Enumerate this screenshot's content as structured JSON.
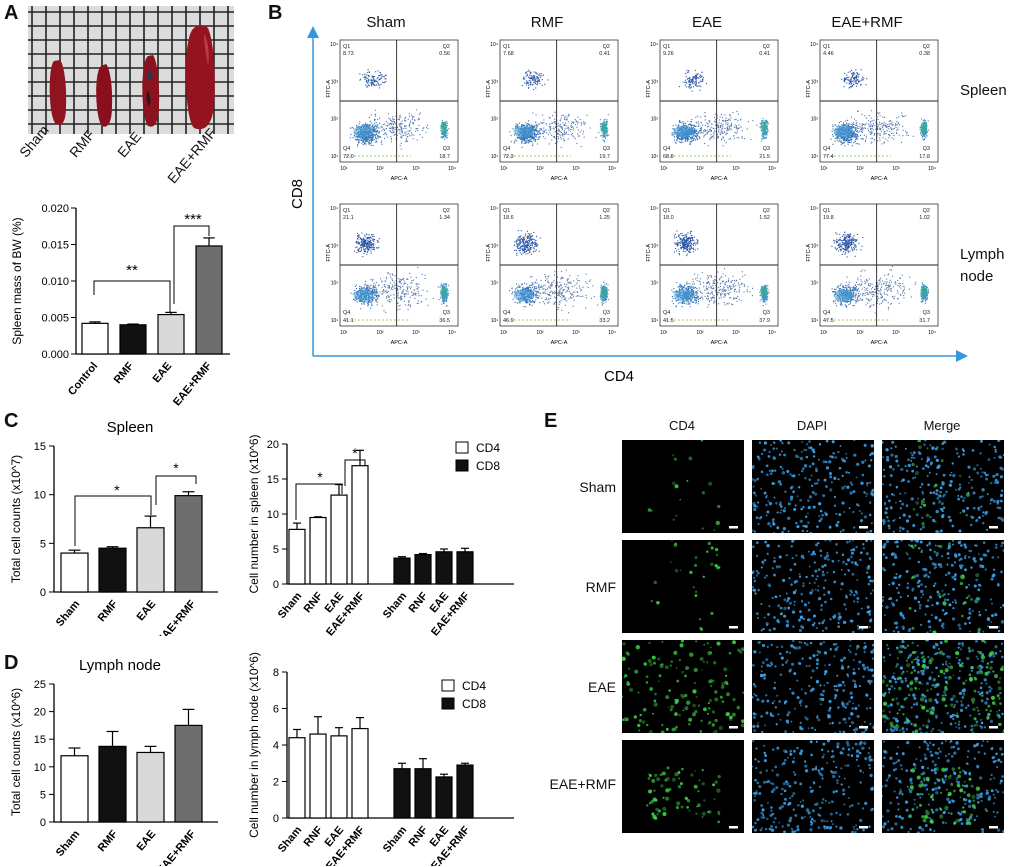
{
  "panels": {
    "A": "A",
    "B": "B",
    "C": "C",
    "D": "D",
    "E": "E"
  },
  "colors": {
    "white_bar": "#ffffff",
    "black_bar": "#111111",
    "light_grey": "#d9d9d9",
    "dark_grey": "#6e6e6e",
    "flow_blue": "#2a56a6",
    "flow_green": "#35b38a",
    "axis_blue": "#3399dd",
    "fluor_green": "#3fd44a",
    "dapi_blue": "#3aa0e8"
  },
  "photo": {
    "labels": [
      "Sham",
      "RMF",
      "EAE",
      "EAE+RMF"
    ]
  },
  "chartA": {
    "ylabel": "Spleen mass of BW (%)",
    "ticks": [
      "0.000",
      "0.005",
      "0.010",
      "0.015",
      "0.020"
    ],
    "categories": [
      "Control",
      "RMF",
      "EAE",
      "EAE+RMF"
    ],
    "sig1": "**",
    "sig2": "***"
  },
  "flow": {
    "columns": [
      "Sham",
      "RMF",
      "EAE",
      "EAE+RMF"
    ],
    "rows": [
      "Spleen",
      "Lymph node"
    ],
    "row_label_lymph_1": "Lymph",
    "row_label_lymph_2": "node",
    "y_axis": "CD8",
    "x_axis": "CD4",
    "xlabel": "APC-A",
    "ylabel": "FITC-A",
    "quadrant_values": [
      [
        [
          "8.73",
          "0.56",
          "72.0",
          "18.7"
        ],
        [
          "7.68",
          "0.41",
          "72.3",
          "19.7"
        ],
        [
          "9.26",
          "0.41",
          "68.8",
          "21.5"
        ],
        [
          "4.46",
          "0.38",
          "77.4",
          "17.8"
        ]
      ],
      [
        [
          "21.1",
          "1.34",
          "41.1",
          "36.5"
        ],
        [
          "18.6",
          "1.25",
          "46.9",
          "33.2"
        ],
        [
          "18.0",
          "1.52",
          "41.5",
          "37.9"
        ],
        [
          "19.8",
          "1.02",
          "47.5",
          "31.7"
        ]
      ]
    ]
  },
  "chartC1": {
    "title": "Spleen",
    "ylabel": "Total cell counts (x10^7)",
    "ticks": [
      "0",
      "5",
      "10",
      "15"
    ],
    "categories": [
      "Sham",
      "RMF",
      "EAE",
      "EAE+RMF"
    ],
    "sig": "*"
  },
  "chartC2": {
    "ylabel": "Cell number in spleen (x10^6)",
    "ticks": [
      "0",
      "5",
      "10",
      "15",
      "20"
    ],
    "categories": [
      "Sham",
      "RNF",
      "EAE",
      "EAE+RMF",
      "Sham",
      "RNF",
      "EAE",
      "EAE+RMF"
    ],
    "legend": [
      "CD4",
      "CD8"
    ],
    "sig": "*"
  },
  "chartD1": {
    "title": "Lymph node",
    "ylabel": "Total cell counts (x10^6)",
    "ticks": [
      "0",
      "5",
      "10",
      "15",
      "20",
      "25"
    ],
    "categories": [
      "Sham",
      "RMF",
      "EAE",
      "EAE+RMF"
    ]
  },
  "chartD2": {
    "ylabel": "Cell number in lymph node (x10^6)",
    "ticks": [
      "0",
      "2",
      "4",
      "6",
      "8"
    ],
    "categories": [
      "Sham",
      "RNF",
      "EAE",
      "EAE+RMF",
      "Sham",
      "RNF",
      "EAE",
      "EAE+RMF"
    ],
    "legend": [
      "CD4",
      "CD8"
    ]
  },
  "micro": {
    "columns": [
      "CD4",
      "DAPI",
      "Merge"
    ],
    "rows": [
      "Sham",
      "RMF",
      "EAE",
      "EAE+RMF"
    ]
  },
  "chart_data": [
    {
      "type": "bar",
      "categories": [
        "Control",
        "RMF",
        "EAE",
        "EAE+RMF"
      ],
      "values": [
        0.0042,
        0.004,
        0.0054,
        0.0148
      ],
      "errors": [
        0.0002,
        0.0001,
        0.0003,
        0.0011
      ],
      "ylabel": "Spleen mass of BW (%)",
      "ylim": [
        0,
        0.02
      ],
      "colors": [
        "#ffffff",
        "#111111",
        "#d9d9d9",
        "#6e6e6e"
      ]
    },
    {
      "type": "bar",
      "title": "Spleen",
      "categories": [
        "Sham",
        "RMF",
        "EAE",
        "EAE+RMF"
      ],
      "values": [
        4.0,
        4.5,
        6.6,
        9.9
      ],
      "errors": [
        0.3,
        0.15,
        1.2,
        0.4
      ],
      "ylabel": "Total cell counts (x10^7)",
      "ylim": [
        0,
        15
      ],
      "colors": [
        "#ffffff",
        "#111111",
        "#d9d9d9",
        "#6e6e6e"
      ]
    },
    {
      "type": "bar",
      "categories": [
        "Sham",
        "RNF",
        "EAE",
        "EAE+RMF"
      ],
      "series": [
        {
          "name": "CD4",
          "values": [
            7.8,
            9.5,
            12.7,
            16.9
          ],
          "errors": [
            0.9,
            0.1,
            1.5,
            2.2
          ]
        },
        {
          "name": "CD8",
          "values": [
            3.7,
            4.2,
            4.6,
            4.6
          ],
          "errors": [
            0.2,
            0.15,
            0.4,
            0.5
          ]
        }
      ],
      "ylabel": "Cell number in spleen (x10^6)",
      "ylim": [
        0,
        20
      ]
    },
    {
      "type": "bar",
      "title": "Lymph node",
      "categories": [
        "Sham",
        "RMF",
        "EAE",
        "EAE+RMF"
      ],
      "values": [
        12.0,
        13.7,
        12.6,
        17.5
      ],
      "errors": [
        1.4,
        2.7,
        1.1,
        2.9
      ],
      "ylabel": "Total cell counts (x10^6)",
      "ylim": [
        0,
        25
      ],
      "colors": [
        "#ffffff",
        "#111111",
        "#d9d9d9",
        "#6e6e6e"
      ]
    },
    {
      "type": "bar",
      "categories": [
        "Sham",
        "RNF",
        "EAE",
        "EAE+RMF"
      ],
      "series": [
        {
          "name": "CD4",
          "values": [
            4.4,
            4.6,
            4.5,
            4.9
          ],
          "errors": [
            0.45,
            0.95,
            0.45,
            0.6
          ]
        },
        {
          "name": "CD8",
          "values": [
            2.7,
            2.7,
            2.25,
            2.9
          ],
          "errors": [
            0.3,
            0.55,
            0.15,
            0.1
          ]
        }
      ],
      "ylabel": "Cell number in lymph node (x10^6)",
      "ylim": [
        0,
        8
      ]
    }
  ]
}
